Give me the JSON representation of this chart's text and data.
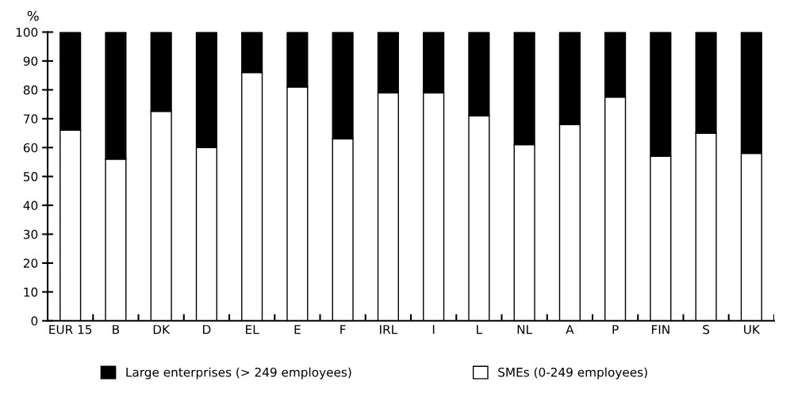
{
  "chart_data": {
    "type": "bar",
    "stacked": true,
    "ylabel": "%",
    "categories": [
      "EUR 15",
      "B",
      "DK",
      "D",
      "EL",
      "E",
      "F",
      "IRL",
      "I",
      "L",
      "NL",
      "A",
      "P",
      "FIN",
      "S",
      "UK"
    ],
    "series": [
      {
        "name": "SMEs (0-249 employees)",
        "color": "#ffffff",
        "values": [
          66,
          56,
          72.5,
          60,
          86,
          81,
          63,
          79,
          79,
          71,
          61,
          68,
          77.5,
          57,
          65,
          58
        ]
      },
      {
        "name": "Large enterprises (> 249 employees)",
        "color": "#000000",
        "values": [
          34,
          44,
          27.5,
          40,
          14,
          19,
          37,
          21,
          21,
          29,
          39,
          32,
          22.5,
          43,
          35,
          42
        ]
      }
    ],
    "ylim": [
      0,
      100
    ],
    "yticks": [
      0,
      10,
      20,
      30,
      40,
      50,
      60,
      70,
      80,
      90,
      100
    ],
    "grid": false,
    "legend": "bottom"
  }
}
